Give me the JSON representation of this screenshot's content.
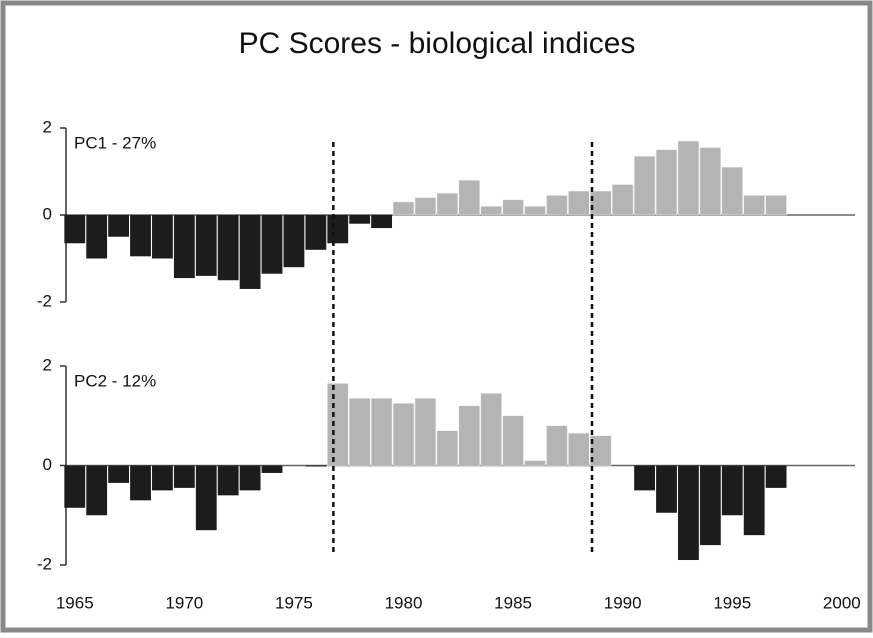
{
  "title": "PC Scores - biological indices",
  "regime_years": [
    1976.8,
    1988.6
  ],
  "chart_data": [
    {
      "type": "bar",
      "label": "PC1 - 27%",
      "x": [
        1965,
        1966,
        1967,
        1968,
        1969,
        1970,
        1971,
        1972,
        1973,
        1974,
        1975,
        1976,
        1977,
        1978,
        1979,
        1980,
        1981,
        1982,
        1983,
        1984,
        1985,
        1986,
        1987,
        1988,
        1989,
        1990,
        1991,
        1992,
        1993,
        1994,
        1995,
        1996,
        1997
      ],
      "values": [
        -0.65,
        -1.0,
        -0.5,
        -0.95,
        -1.0,
        -1.45,
        -1.4,
        -1.5,
        -1.7,
        -1.35,
        -1.2,
        -0.8,
        -0.65,
        -0.2,
        -0.3,
        0.3,
        0.4,
        0.5,
        0.8,
        0.2,
        0.35,
        0.2,
        0.45,
        0.55,
        0.55,
        0.7,
        1.35,
        1.5,
        1.7,
        1.55,
        1.1,
        0.45,
        0.45
      ],
      "color_negative": "#1c1c1c",
      "color_positive": "#b4b4b4",
      "xlim": [
        1964.6,
        2000.6
      ],
      "ylim": [
        -2,
        2
      ],
      "yticks": [
        2,
        0,
        -2
      ]
    },
    {
      "type": "bar",
      "label": "PC2 - 12%",
      "x": [
        1965,
        1966,
        1967,
        1968,
        1969,
        1970,
        1971,
        1972,
        1973,
        1974,
        1975,
        1976,
        1977,
        1978,
        1979,
        1980,
        1981,
        1982,
        1983,
        1984,
        1985,
        1986,
        1987,
        1988,
        1989,
        1990,
        1991,
        1992,
        1993,
        1994,
        1995,
        1996,
        1997
      ],
      "values": [
        -0.85,
        -1.0,
        -0.35,
        -0.7,
        -0.5,
        -0.45,
        -1.3,
        -0.6,
        -0.5,
        -0.15,
        0,
        -0.02,
        1.65,
        1.35,
        1.35,
        1.25,
        1.35,
        0.7,
        1.2,
        1.45,
        1.0,
        0.1,
        0.8,
        0.65,
        0.6,
        0,
        -0.5,
        -0.95,
        -1.9,
        -1.6,
        -1.0,
        -1.4,
        -0.45
      ],
      "color_negative": "#1c1c1c",
      "color_positive": "#b4b4b4",
      "xlim": [
        1964.6,
        2000.6
      ],
      "ylim": [
        -2,
        2
      ],
      "yticks": [
        2,
        0,
        -2
      ],
      "xticks": [
        1965,
        1970,
        1975,
        1980,
        1985,
        1990,
        1995,
        2000
      ]
    }
  ]
}
